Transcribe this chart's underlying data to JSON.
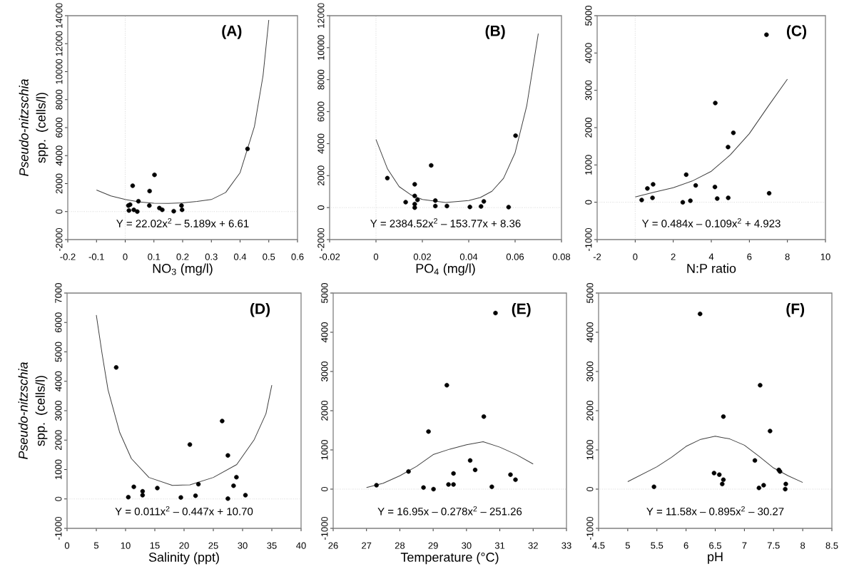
{
  "chart_data": [
    {
      "type": "scatter",
      "title": "(A)",
      "xlabel": "NO$_{3}$ (mg/l)",
      "ylabel": "*Pseudo-nitzschia* spp. (cells/l)",
      "annotations": [
        "Y = 22.02x$^{2}$ – 5.189x + 6.61"
      ],
      "marker": "circle",
      "xlim": [
        -0.2,
        0.6
      ],
      "xticks": [
        -0.2,
        -0.1,
        0,
        0.1,
        0.2,
        0.3,
        0.4,
        0.5,
        0.6
      ],
      "ylim": [
        -2000,
        14000
      ],
      "yticks": [
        -2000,
        0,
        2000,
        4000,
        6000,
        8000,
        10000,
        12000,
        14000
      ],
      "ref_lines": [
        {
          "axis": "x",
          "value": 0,
          "color": "#999999",
          "line_style": "dotted"
        },
        {
          "axis": "y",
          "value": 0,
          "color": "#999999",
          "line_style": "dotted"
        }
      ],
      "series": [
        {
          "type": "scatter",
          "color": "#000000",
          "x": [
            0.011,
            0.017,
            0.013,
            0.026,
            0.03,
            0.042,
            0.046,
            0.084,
            0.085,
            0.102,
            0.119,
            0.129,
            0.169,
            0.196,
            0.198,
            0.426
          ],
          "values": [
            430,
            500,
            80,
            1850,
            130,
            0,
            740,
            430,
            1470,
            2630,
            250,
            130,
            30,
            430,
            130,
            4480
          ]
        },
        {
          "type": "line",
          "marker": "none",
          "color": "#404040",
          "x": [
            -0.1,
            -0.05,
            0,
            0.05,
            0.1,
            0.15,
            0.2,
            0.25,
            0.3,
            0.35,
            0.4,
            0.45,
            0.48,
            0.5
          ],
          "values": [
            1540,
            1120,
            870,
            690,
            600,
            580,
            620,
            720,
            860,
            1370,
            2780,
            6080,
            9720,
            13690
          ]
        }
      ]
    },
    {
      "type": "scatter",
      "title": "(B)",
      "xlabel": "PO$_{4}$ (mg/l)",
      "annotations": [
        "Y = 2384.52x$^{2}$ – 153.77x + 8.36"
      ],
      "marker": "circle",
      "xlim": [
        -0.02,
        0.08
      ],
      "xticks": [
        -0.02,
        0,
        0.02,
        0.04,
        0.06,
        0.08
      ],
      "ylim": [
        -2000,
        12000
      ],
      "yticks": [
        -2000,
        0,
        2000,
        4000,
        6000,
        8000,
        10000,
        12000
      ],
      "ref_lines": [
        {
          "axis": "x",
          "value": 0,
          "color": "#999999",
          "line_style": "dotted"
        },
        {
          "axis": "y",
          "value": 0,
          "color": "#999999",
          "line_style": "dotted"
        }
      ],
      "series": [
        {
          "type": "scatter",
          "color": "#000000",
          "x": [
            0.0049,
            0.0128,
            0.0167,
            0.0167,
            0.0167,
            0.0167,
            0.0179,
            0.0238,
            0.0256,
            0.0256,
            0.0306,
            0.0405,
            0.0453,
            0.0465,
            0.0572,
            0.0602
          ],
          "values": [
            1840,
            340,
            1460,
            730,
            220,
            0,
            480,
            2640,
            440,
            100,
            100,
            40,
            70,
            390,
            30,
            4500
          ]
        },
        {
          "type": "line",
          "marker": "none",
          "color": "#404040",
          "x": [
            0,
            0.005,
            0.01,
            0.015,
            0.02,
            0.03,
            0.04,
            0.045,
            0.05,
            0.055,
            0.06,
            0.065,
            0.07
          ],
          "values": [
            4260,
            2410,
            1310,
            800,
            510,
            320,
            440,
            630,
            1020,
            1830,
            3430,
            6350,
            10880
          ]
        }
      ]
    },
    {
      "type": "scatter",
      "title": "(C)",
      "xlabel": "N:P ratio",
      "annotations": [
        "Y = 0.484x – 0.109x$^{2}$ + 4.923"
      ],
      "marker": "circle",
      "xlim": [
        -2,
        10
      ],
      "xticks": [
        -2,
        0,
        2,
        4,
        6,
        8,
        10
      ],
      "ylim": [
        -1000,
        5000
      ],
      "yticks": [
        -1000,
        0,
        1000,
        2000,
        3000,
        4000,
        5000
      ],
      "ref_lines": [
        {
          "axis": "x",
          "value": 0,
          "color": "#999999",
          "line_style": "dotted"
        },
        {
          "axis": "y",
          "value": 0,
          "color": "#999999",
          "line_style": "dotted"
        }
      ],
      "series": [
        {
          "type": "scatter",
          "color": "#000000",
          "x": [
            0.34,
            0.64,
            0.91,
            0.94,
            2.5,
            2.68,
            2.9,
            3.18,
            4.19,
            4.21,
            4.31,
            4.88,
            4.89,
            5.16,
            6.9,
            7.04
          ],
          "values": [
            60,
            370,
            120,
            480,
            0,
            740,
            40,
            450,
            410,
            2660,
            100,
            1480,
            120,
            1860,
            4490,
            240
          ]
        },
        {
          "type": "line",
          "marker": "none",
          "color": "#404040",
          "x": [
            0,
            1,
            2,
            3,
            4,
            5,
            6,
            7,
            8
          ],
          "values": [
            140,
            270,
            390,
            570,
            830,
            1270,
            1840,
            2580,
            3300
          ]
        }
      ]
    },
    {
      "type": "scatter",
      "title": "(D)",
      "xlabel": "Salinity (ppt)",
      "ylabel": "*Pseudo-nitzschia* spp. (cells/l)",
      "annotations": [
        "Y = 0.011x$^{2}$ – 0.447x + 10.70"
      ],
      "marker": "circle",
      "xlim": [
        0,
        40
      ],
      "xticks": [
        0,
        5,
        10,
        15,
        20,
        25,
        30,
        35,
        40
      ],
      "ylim": [
        -1000,
        7000
      ],
      "yticks": [
        -1000,
        0,
        1000,
        2000,
        3000,
        4000,
        5000,
        6000,
        7000
      ],
      "ref_lines": [
        {
          "axis": "y",
          "value": 0,
          "color": "#999999",
          "line_style": "dotted"
        }
      ],
      "series": [
        {
          "type": "scatter",
          "color": "#000000",
          "x": [
            8.4,
            10.47,
            11.41,
            12.91,
            12.91,
            15.43,
            19.45,
            20.99,
            21.96,
            22.45,
            26.51,
            27.49,
            27.49,
            28.46,
            28.95,
            30.49
          ],
          "values": [
            4470,
            60,
            410,
            260,
            130,
            370,
            50,
            1850,
            110,
            500,
            2650,
            1480,
            10,
            450,
            740,
            130
          ]
        },
        {
          "type": "line",
          "marker": "none",
          "color": "#404040",
          "x": [
            5,
            6,
            7,
            9,
            11,
            14,
            18,
            21,
            25,
            29,
            32,
            34,
            35
          ],
          "values": [
            6250,
            4920,
            3710,
            2260,
            1370,
            730,
            460,
            480,
            730,
            1170,
            2020,
            2900,
            3870
          ]
        }
      ]
    },
    {
      "type": "scatter",
      "title": "(E)",
      "xlabel": "Temperature (°C)",
      "annotations": [
        "Y = 16.95x – 0.278x$^{2}$ – 251.26"
      ],
      "marker": "circle",
      "xlim": [
        26,
        33
      ],
      "xticks": [
        26,
        27,
        28,
        29,
        30,
        31,
        32,
        33
      ],
      "ylim": [
        -1000,
        5000
      ],
      "yticks": [
        -1000,
        0,
        1000,
        2000,
        3000,
        4000,
        5000
      ],
      "ref_lines": [
        {
          "axis": "y",
          "value": 0,
          "color": "#999999",
          "line_style": "dotted"
        }
      ],
      "series": [
        {
          "type": "scatter",
          "color": "#000000",
          "x": [
            27.3,
            28.26,
            28.71,
            28.86,
            29.01,
            29.41,
            29.46,
            29.61,
            29.61,
            30.11,
            30.26,
            30.52,
            30.76,
            30.87,
            31.32,
            31.47
          ],
          "values": [
            100,
            450,
            40,
            1470,
            0,
            2650,
            120,
            120,
            400,
            730,
            490,
            1850,
            60,
            4490,
            370,
            240
          ]
        },
        {
          "type": "line",
          "marker": "none",
          "color": "#404040",
          "x": [
            27,
            27.5,
            28,
            28.5,
            29,
            29.5,
            30,
            30.5,
            31,
            31.5,
            32
          ],
          "values": [
            40,
            150,
            340,
            580,
            880,
            1020,
            1130,
            1210,
            1070,
            880,
            640
          ]
        }
      ]
    },
    {
      "type": "scatter",
      "title": "(F)",
      "xlabel": "pH",
      "annotations": [
        "Y = 11.58x – 0.895x$^{2}$ – 30.27"
      ],
      "marker": "circle",
      "xlim": [
        4.5,
        8.5
      ],
      "xticks": [
        4.5,
        5,
        5.5,
        6,
        6.5,
        7,
        7.5,
        8,
        8.5
      ],
      "ylim": [
        -1000,
        5000
      ],
      "yticks": [
        -1000,
        0,
        1000,
        2000,
        3000,
        4000,
        5000
      ],
      "ref_lines": [
        {
          "axis": "y",
          "value": 0,
          "color": "#999999",
          "line_style": "dotted"
        }
      ],
      "series": [
        {
          "type": "scatter",
          "color": "#000000",
          "x": [
            5.45,
            6.24,
            6.48,
            6.57,
            6.62,
            6.64,
            6.64,
            7.18,
            7.25,
            7.27,
            7.33,
            7.44,
            7.59,
            7.61,
            7.7,
            7.71
          ],
          "values": [
            60,
            4470,
            410,
            370,
            130,
            240,
            1850,
            730,
            30,
            2650,
            100,
            1480,
            490,
            450,
            0,
            130
          ]
        },
        {
          "type": "line",
          "marker": "none",
          "color": "#404040",
          "x": [
            5,
            5.5,
            5.75,
            6,
            6.25,
            6.5,
            6.75,
            7,
            7.25,
            7.5,
            7.75,
            8
          ],
          "values": [
            190,
            570,
            810,
            1090,
            1270,
            1350,
            1280,
            1120,
            840,
            540,
            340,
            170
          ]
        }
      ]
    }
  ]
}
